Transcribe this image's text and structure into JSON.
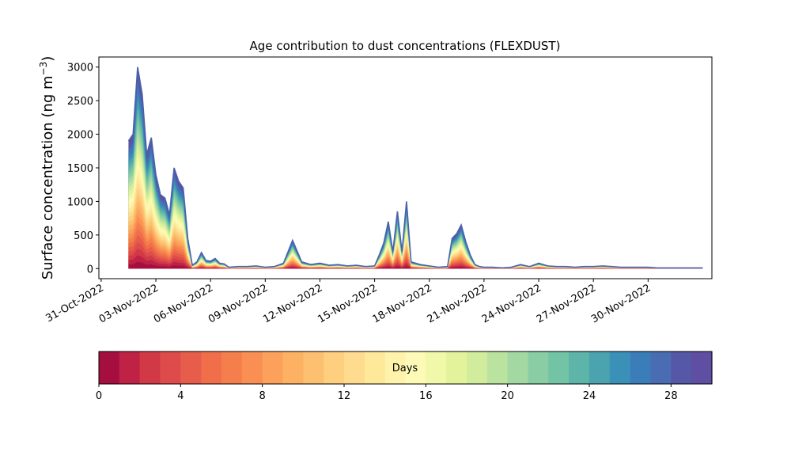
{
  "chart_data": {
    "type": "area",
    "title": "Age contribution to dust concentrations (FLEXDUST)",
    "ylabel_main": "Surface concentration (ng m",
    "ylabel_sup": "−3",
    "ylabel_close": ")",
    "xlabel": "",
    "ylim": [
      -150,
      3150
    ],
    "xlim": [
      "2022-10-30T21:00",
      "2022-12-03T12:00"
    ],
    "yticks": [
      0,
      500,
      1000,
      1500,
      2000,
      2500,
      3000
    ],
    "ytick_labels": [
      "0",
      "500",
      "1000",
      "1500",
      "2000",
      "2500",
      "3000"
    ],
    "xticks": [
      "2022-10-31",
      "2022-11-03",
      "2022-11-06",
      "2022-11-09",
      "2022-11-12",
      "2022-11-15",
      "2022-11-18",
      "2022-11-21",
      "2022-11-24",
      "2022-11-27",
      "2022-11-30"
    ],
    "xtick_labels": [
      "31-Oct-2022",
      "03-Nov-2022",
      "06-Nov-2022",
      "09-Nov-2022",
      "12-Nov-2022",
      "15-Nov-2022",
      "18-Nov-2022",
      "21-Nov-2022",
      "24-Nov-2022",
      "27-Nov-2022",
      "30-Nov-2022"
    ],
    "grid": false,
    "age_bins_days": 30,
    "total_concentration": {
      "x": [
        "2022-11-01T12:00",
        "2022-11-01T18:00",
        "2022-11-02T00:00",
        "2022-11-02T06:00",
        "2022-11-02T12:00",
        "2022-11-02T18:00",
        "2022-11-03T00:00",
        "2022-11-03T06:00",
        "2022-11-03T12:00",
        "2022-11-03T18:00",
        "2022-11-04T00:00",
        "2022-11-04T06:00",
        "2022-11-04T12:00",
        "2022-11-04T18:00",
        "2022-11-05T00:00",
        "2022-11-05T06:00",
        "2022-11-05T12:00",
        "2022-11-05T18:00",
        "2022-11-06T00:00",
        "2022-11-06T06:00",
        "2022-11-06T12:00",
        "2022-11-06T18:00",
        "2022-11-07T00:00",
        "2022-11-07T12:00",
        "2022-11-08T00:00",
        "2022-11-08T12:00",
        "2022-11-09T00:00",
        "2022-11-09T12:00",
        "2022-11-10T00:00",
        "2022-11-10T12:00",
        "2022-11-11T00:00",
        "2022-11-11T12:00",
        "2022-11-12T00:00",
        "2022-11-12T12:00",
        "2022-11-13T00:00",
        "2022-11-13T12:00",
        "2022-11-14T00:00",
        "2022-11-14T12:00",
        "2022-11-15T00:00",
        "2022-11-15T06:00",
        "2022-11-15T12:00",
        "2022-11-15T18:00",
        "2022-11-16T00:00",
        "2022-11-16T06:00",
        "2022-11-16T12:00",
        "2022-11-16T18:00",
        "2022-11-17T00:00",
        "2022-11-17T12:00",
        "2022-11-18T00:00",
        "2022-11-18T12:00",
        "2022-11-19T00:00",
        "2022-11-19T06:00",
        "2022-11-19T12:00",
        "2022-11-19T18:00",
        "2022-11-20T00:00",
        "2022-11-20T06:00",
        "2022-11-20T12:00",
        "2022-11-20T18:00",
        "2022-11-21T00:00",
        "2022-11-21T12:00",
        "2022-11-22T00:00",
        "2022-11-22T12:00",
        "2022-11-23T00:00",
        "2022-11-23T12:00",
        "2022-11-24T00:00",
        "2022-11-24T12:00",
        "2022-11-25T00:00",
        "2022-11-25T12:00",
        "2022-11-26T00:00",
        "2022-11-26T12:00",
        "2022-11-27T00:00",
        "2022-11-27T12:00",
        "2022-11-28T00:00",
        "2022-11-28T12:00",
        "2022-11-29T00:00",
        "2022-11-29T12:00",
        "2022-11-30T00:00",
        "2022-11-30T12:00",
        "2022-12-01T00:00",
        "2022-12-01T12:00",
        "2022-12-02T00:00",
        "2022-12-02T12:00",
        "2022-12-03T00:00"
      ],
      "values": [
        1900,
        2000,
        3000,
        2600,
        1700,
        1950,
        1400,
        1100,
        1050,
        800,
        1500,
        1300,
        1200,
        450,
        50,
        100,
        240,
        120,
        110,
        150,
        80,
        70,
        20,
        30,
        30,
        40,
        20,
        30,
        80,
        420,
        100,
        60,
        80,
        50,
        60,
        40,
        50,
        30,
        40,
        200,
        380,
        700,
        250,
        850,
        250,
        1000,
        100,
        60,
        40,
        20,
        30,
        450,
        520,
        650,
        400,
        200,
        60,
        30,
        20,
        20,
        10,
        20,
        60,
        30,
        80,
        40,
        30,
        30,
        20,
        30,
        30,
        40,
        30,
        20,
        20,
        20,
        20,
        10,
        10,
        10,
        10,
        10,
        10
      ]
    },
    "colorbar": {
      "label": "Days",
      "vmin": 0,
      "vmax": 30,
      "ticks": [
        0,
        4,
        8,
        12,
        16,
        20,
        24,
        28
      ],
      "tick_labels": [
        "0",
        "4",
        "8",
        "12",
        "16",
        "20",
        "24",
        "28"
      ],
      "colors": [
        "#a50f40",
        "#bf2244",
        "#d13947",
        "#de4b4b",
        "#e75d4b",
        "#f06e4a",
        "#f57f4c",
        "#f98f53",
        "#fba15b",
        "#fcb163",
        "#fdc070",
        "#fdcf7f",
        "#fedb8e",
        "#fee89a",
        "#fff2aa",
        "#fcfab6",
        "#f1f8aa",
        "#e3f39b",
        "#d1ec9c",
        "#bbe3a0",
        "#a3d8a3",
        "#8acda4",
        "#73c4a4",
        "#5db4a8",
        "#4aa3ae",
        "#3a90b7",
        "#3b7db8",
        "#4a6cb2",
        "#5558a6",
        "#5e4fa2"
      ]
    }
  }
}
